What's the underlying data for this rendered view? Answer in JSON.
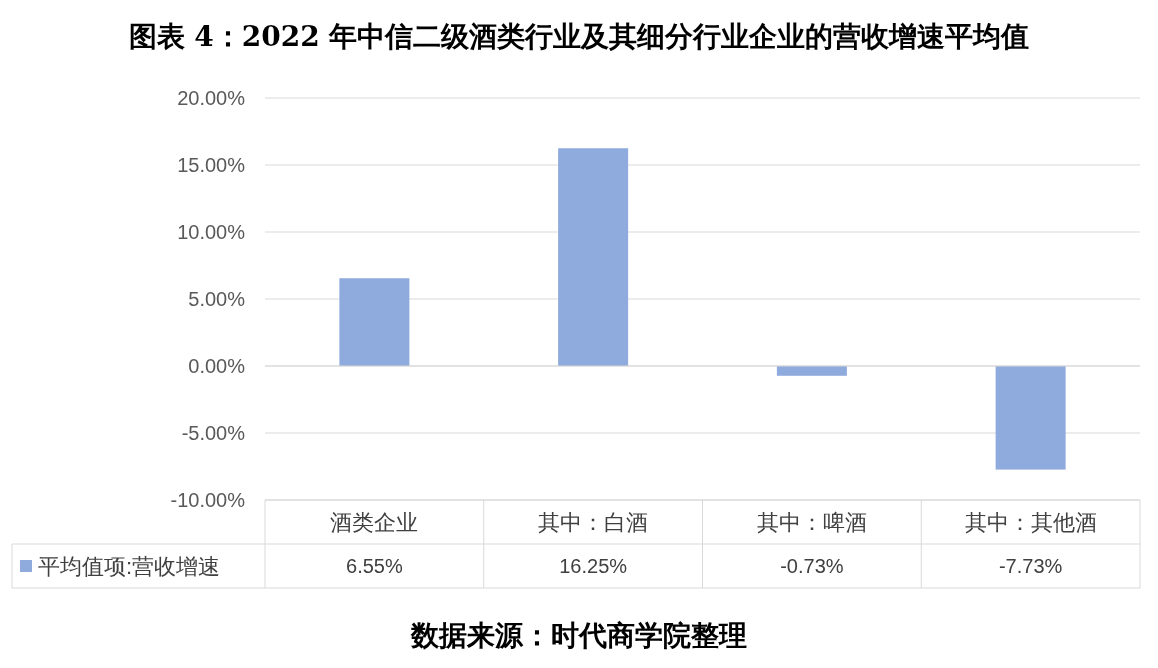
{
  "chart_data": {
    "type": "bar",
    "title": "图表 4：2022 年中信二级酒类行业及其细分行业企业的营收增速平均值",
    "categories": [
      "酒类企业",
      "其中：白酒",
      "其中：啤酒",
      "其中：其他酒"
    ],
    "series": [
      {
        "name": "平均值项:营收增速",
        "color": "#8faadc",
        "values": [
          6.55,
          16.25,
          -0.73,
          -7.73
        ],
        "value_labels": [
          "6.55%",
          "16.25%",
          "-0.73%",
          "-7.73%"
        ]
      }
    ],
    "ylim": [
      -10,
      20
    ],
    "yticks": [
      {
        "value": -10,
        "label": "-10.00%"
      },
      {
        "value": -5,
        "label": "-5.00%"
      },
      {
        "value": 0,
        "label": "0.00%"
      },
      {
        "value": 5,
        "label": "5.00%"
      },
      {
        "value": 10,
        "label": "10.00%"
      },
      {
        "value": 15,
        "label": "15.00%"
      },
      {
        "value": 20,
        "label": "20.00%"
      }
    ],
    "grid": "y",
    "legend": "bottom",
    "annotations": [
      "数据来源：时代商学院整理"
    ]
  }
}
